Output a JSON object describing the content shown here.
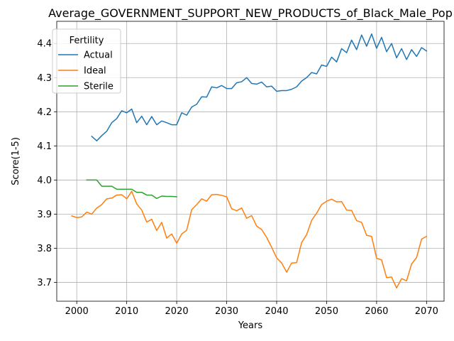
{
  "chart_data": {
    "type": "line",
    "title": "Average_GOVERNMENT_SUPPORT_NEW_PRODUCTS_of_Black_Male_Pop",
    "xlabel": "Years",
    "ylabel": "Score(1-5)",
    "xlim": [
      1996,
      2073.5
    ],
    "ylim": [
      3.645,
      4.465
    ],
    "xticks": [
      2000,
      2010,
      2020,
      2030,
      2040,
      2050,
      2060,
      2070
    ],
    "yticks": [
      3.7,
      3.8,
      3.9,
      4.0,
      4.1,
      4.2,
      4.3,
      4.4
    ],
    "grid": true,
    "legend": {
      "title": "Fertility",
      "position": "top-left"
    },
    "series": [
      {
        "name": "Actual",
        "color": "#1f77b4",
        "x": [
          2003,
          2004,
          2005,
          2006,
          2007,
          2008,
          2009,
          2010,
          2011,
          2012,
          2013,
          2014,
          2015,
          2016,
          2017,
          2018,
          2019,
          2020,
          2021,
          2022,
          2023,
          2024,
          2025,
          2026,
          2027,
          2028,
          2029,
          2030,
          2031,
          2032,
          2033,
          2034,
          2035,
          2036,
          2037,
          2038,
          2039,
          2040,
          2041,
          2042,
          2043,
          2044,
          2045,
          2046,
          2047,
          2048,
          2049,
          2050,
          2051,
          2052,
          2053,
          2054,
          2055,
          2056,
          2057,
          2058,
          2059,
          2060,
          2061,
          2062,
          2063,
          2064,
          2065,
          2066,
          2067,
          2068,
          2069,
          2070
        ],
        "y": [
          4.128,
          4.115,
          4.13,
          4.143,
          4.168,
          4.18,
          4.203,
          4.197,
          4.208,
          4.168,
          4.187,
          4.162,
          4.186,
          4.162,
          4.173,
          4.168,
          4.162,
          4.162,
          4.197,
          4.19,
          4.214,
          4.222,
          4.244,
          4.243,
          4.273,
          4.27,
          4.277,
          4.268,
          4.268,
          4.285,
          4.288,
          4.3,
          4.283,
          4.281,
          4.287,
          4.273,
          4.275,
          4.26,
          4.262,
          4.262,
          4.266,
          4.273,
          4.29,
          4.3,
          4.315,
          4.311,
          4.337,
          4.333,
          4.36,
          4.346,
          4.385,
          4.373,
          4.41,
          4.382,
          4.425,
          4.392,
          4.428,
          4.386,
          4.418,
          4.376,
          4.4,
          4.358,
          4.385,
          4.353,
          4.382,
          4.362,
          4.388,
          4.378
        ]
      },
      {
        "name": "Ideal",
        "color": "#ff7f0e",
        "x": [
          1999,
          2000,
          2001,
          2002,
          2003,
          2004,
          2005,
          2006,
          2007,
          2008,
          2009,
          2010,
          2011,
          2012,
          2013,
          2014,
          2015,
          2016,
          2017,
          2018,
          2019,
          2020,
          2021,
          2022,
          2023,
          2024,
          2025,
          2026,
          2027,
          2028,
          2029,
          2030,
          2031,
          2032,
          2033,
          2034,
          2035,
          2036,
          2037,
          2038,
          2039,
          2040,
          2041,
          2042,
          2043,
          2044,
          2045,
          2046,
          2047,
          2048,
          2049,
          2050,
          2051,
          2052,
          2053,
          2054,
          2055,
          2056,
          2057,
          2058,
          2059,
          2060,
          2061,
          2062,
          2063,
          2064,
          2065,
          2066,
          2067,
          2068,
          2069,
          2070
        ],
        "y": [
          3.895,
          3.89,
          3.892,
          3.906,
          3.9,
          3.918,
          3.928,
          3.945,
          3.947,
          3.956,
          3.957,
          3.945,
          3.967,
          3.93,
          3.912,
          3.877,
          3.885,
          3.852,
          3.876,
          3.83,
          3.842,
          3.815,
          3.842,
          3.853,
          3.913,
          3.928,
          3.945,
          3.938,
          3.957,
          3.958,
          3.955,
          3.951,
          3.916,
          3.91,
          3.918,
          3.888,
          3.896,
          3.865,
          3.855,
          3.832,
          3.803,
          3.772,
          3.757,
          3.73,
          3.757,
          3.758,
          3.817,
          3.84,
          3.882,
          3.903,
          3.928,
          3.938,
          3.944,
          3.936,
          3.937,
          3.912,
          3.911,
          3.881,
          3.876,
          3.838,
          3.835,
          3.771,
          3.766,
          3.714,
          3.716,
          3.684,
          3.711,
          3.705,
          3.754,
          3.773,
          3.827,
          3.835
        ]
      },
      {
        "name": "Sterile",
        "color": "#2ca02c",
        "x": [
          2002,
          2003,
          2004,
          2005,
          2006,
          2007,
          2008,
          2009,
          2010,
          2011,
          2012,
          2013,
          2014,
          2015,
          2016,
          2017,
          2018,
          2019,
          2020
        ],
        "y": [
          4.0,
          4.0,
          4.0,
          3.982,
          3.982,
          3.982,
          3.973,
          3.973,
          3.973,
          3.973,
          3.964,
          3.964,
          3.956,
          3.956,
          3.946,
          3.953,
          3.952,
          3.952,
          3.951
        ]
      }
    ]
  }
}
